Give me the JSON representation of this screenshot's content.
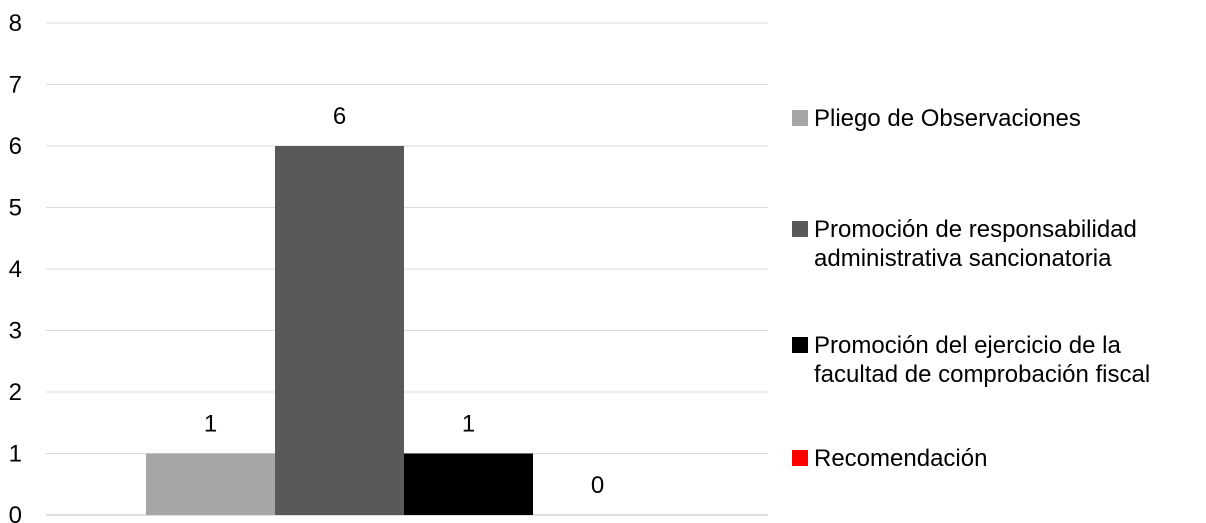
{
  "chart_data": {
    "type": "bar",
    "categories": [
      ""
    ],
    "series": [
      {
        "name": "Pliego de Observaciones",
        "values": [
          1
        ],
        "color": "#a6a6a6"
      },
      {
        "name": "Promoción de responsabilidad administrativa sancionatoria",
        "values": [
          6
        ],
        "color": "#595959"
      },
      {
        "name": "Promoción del ejercicio de la facultad de comprobación fiscal",
        "values": [
          1
        ],
        "color": "#000000"
      },
      {
        "name": "Recomendación",
        "values": [
          0
        ],
        "color": "#ff0000"
      }
    ],
    "title": "",
    "xlabel": "",
    "ylabel": "",
    "ylim": [
      0,
      8
    ],
    "yticks": [
      "0",
      "1",
      "2",
      "3",
      "4",
      "5",
      "6",
      "7",
      "8"
    ],
    "grid": true,
    "legend_position": "right",
    "data_labels": [
      "1",
      "6",
      "1",
      "0"
    ]
  },
  "legend": {
    "items": [
      {
        "label_lines": [
          "Pliego de Observaciones"
        ],
        "color": "#a6a6a6"
      },
      {
        "label_lines": [
          "Promoción de responsabilidad",
          "administrativa sancionatoria"
        ],
        "color": "#595959"
      },
      {
        "label_lines": [
          "Promoción del ejercicio de la",
          "facultad de comprobación fiscal"
        ],
        "color": "#000000"
      },
      {
        "label_lines": [
          "Recomendación"
        ],
        "color": "#ff0000"
      }
    ]
  }
}
